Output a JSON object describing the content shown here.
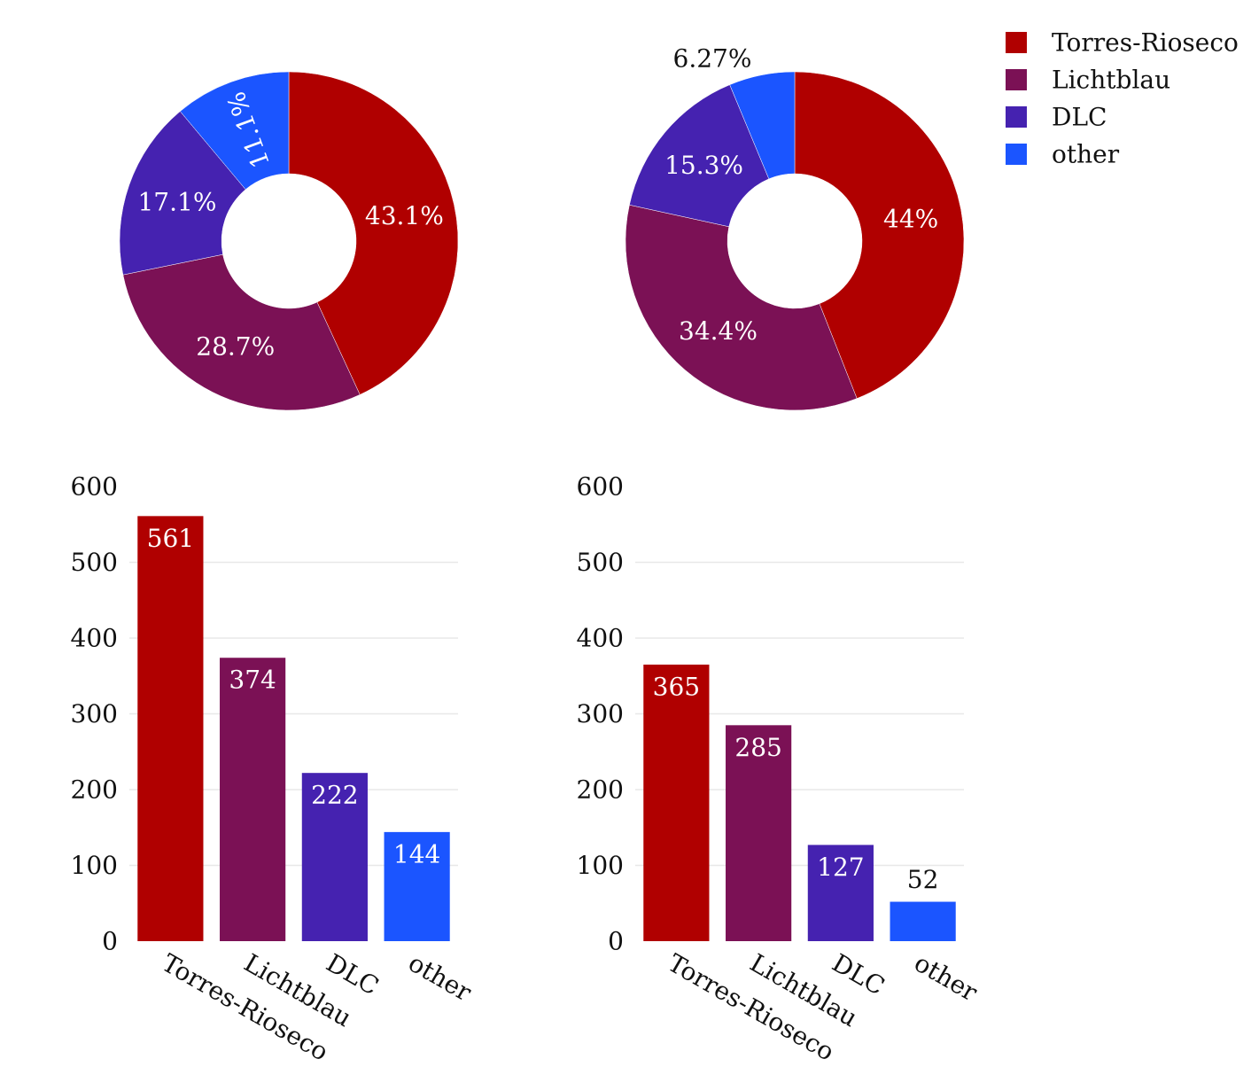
{
  "colors": {
    "Torres-Rioseco": "#b00000",
    "Lichtblau": "#7b1155",
    "DLC": "#4522b0",
    "other": "#1b55ff"
  },
  "legend": {
    "placement": "top-right",
    "items": [
      "Torres-Rioseco",
      "Lichtblau",
      "DLC",
      "other"
    ]
  },
  "chart_data": [
    {
      "type": "pie",
      "style": "donut",
      "categories": [
        "Torres-Rioseco",
        "Lichtblau",
        "DLC",
        "other"
      ],
      "values": [
        43.1,
        28.7,
        17.1,
        11.1
      ],
      "labels": [
        "43.1%",
        "28.7%",
        "17.1%",
        "11.1%"
      ]
    },
    {
      "type": "pie",
      "style": "donut",
      "categories": [
        "Torres-Rioseco",
        "Lichtblau",
        "DLC",
        "other"
      ],
      "values": [
        44,
        34.4,
        15.3,
        6.27
      ],
      "labels": [
        "44%",
        "34.4%",
        "15.3%",
        "6.27%"
      ]
    },
    {
      "type": "bar",
      "categories": [
        "Torres-Rioseco",
        "Lichtblau",
        "DLC",
        "other"
      ],
      "values": [
        561,
        374,
        222,
        144
      ],
      "ylim": [
        0,
        600
      ],
      "yticks": [
        0,
        100,
        200,
        300,
        400,
        500,
        600
      ],
      "grid": true
    },
    {
      "type": "bar",
      "categories": [
        "Torres-Rioseco",
        "Lichtblau",
        "DLC",
        "other"
      ],
      "values": [
        365,
        285,
        127,
        52
      ],
      "ylim": [
        0,
        600
      ],
      "yticks": [
        0,
        100,
        200,
        300,
        400,
        500,
        600
      ],
      "grid": true
    }
  ]
}
